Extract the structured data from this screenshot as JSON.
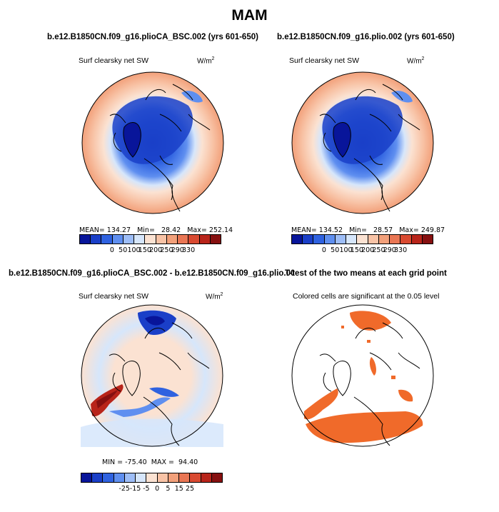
{
  "figure": {
    "title": "MAM"
  },
  "panels": [
    {
      "title": "b.e12.B1850CN.f09_g16.plioCA_BSC.002 (yrs 601-650)",
      "subtitle": "Surf clearsky net SW",
      "units_base": "W/m",
      "units_exp": "2",
      "stats": "MEAN= 134.27   Min=   28.42   Max= 252.14"
    },
    {
      "title": "b.e12.B1850CN.f09_g16.plio.002 (yrs 601-650)",
      "subtitle": "Surf clearsky net SW",
      "units_base": "W/m",
      "units_exp": "2",
      "stats": "MEAN= 134.52   Min=   28.57   Max= 249.87"
    },
    {
      "title": "b.e12.B1850CN.f09_g16.plioCA_BSC.002 - b.e12.B1850CN.f09_g16.plio.002",
      "subtitle": "Surf clearsky net SW",
      "units_base": "W/m",
      "units_exp": "2",
      "stats": "MIN = -75.40  MAX =  94.40"
    },
    {
      "title": "T-test of the two means at each grid point",
      "subtitle": "Colored cells are significant at the 0.05 level"
    }
  ],
  "colorbars": {
    "absolute": {
      "labels": [
        "0",
        "50",
        "100",
        "150",
        "200",
        "250",
        "290",
        "330"
      ],
      "colors": [
        "#08159a",
        "#1a3fc8",
        "#2f62e0",
        "#5f8ff0",
        "#9dbdf7",
        "#d6e6fb",
        "#fbe2d2",
        "#f8c3a6",
        "#f2a07a",
        "#e97654",
        "#d94a31",
        "#b8241a",
        "#861010"
      ]
    },
    "difference": {
      "labels": [
        "-25",
        "-15",
        "-5",
        "0",
        "5",
        "15",
        "25"
      ],
      "colors": [
        "#08159a",
        "#1a3fc8",
        "#2f62e0",
        "#5f8ff0",
        "#9dbdf7",
        "#d6e6fb",
        "#fbe2d2",
        "#f8c3a6",
        "#f2a07a",
        "#e97654",
        "#d94a31",
        "#b8241a",
        "#861010"
      ]
    }
  },
  "chart_data": [
    {
      "type": "heatmap",
      "title": "b.e12.B1850CN.f09_g16.plioCA_BSC.002 (yrs 601-650)",
      "variable": "Surf clearsky net SW",
      "units": "W/m2",
      "projection": "north polar stereographic",
      "stats": {
        "mean": 134.27,
        "min": 28.42,
        "max": 252.14
      },
      "contour_levels": [
        0,
        50,
        100,
        150,
        200,
        250,
        290,
        330
      ]
    },
    {
      "type": "heatmap",
      "title": "b.e12.B1850CN.f09_g16.plio.002 (yrs 601-650)",
      "variable": "Surf clearsky net SW",
      "units": "W/m2",
      "projection": "north polar stereographic",
      "stats": {
        "mean": 134.52,
        "min": 28.57,
        "max": 249.87
      },
      "contour_levels": [
        0,
        50,
        100,
        150,
        200,
        250,
        290,
        330
      ]
    },
    {
      "type": "heatmap",
      "title": "b.e12.B1850CN.f09_g16.plioCA_BSC.002 - b.e12.B1850CN.f09_g16.plio.002",
      "variable": "Surf clearsky net SW",
      "units": "W/m2",
      "projection": "north polar stereographic",
      "stats": {
        "min": -75.4,
        "max": 94.4
      },
      "contour_levels": [
        -25,
        -15,
        -5,
        0,
        5,
        15,
        25
      ]
    },
    {
      "type": "heatmap",
      "title": "T-test of the two means at each grid point",
      "subtitle": "Colored cells are significant at the 0.05 level",
      "projection": "north polar stereographic",
      "significance_level": 0.05
    }
  ]
}
